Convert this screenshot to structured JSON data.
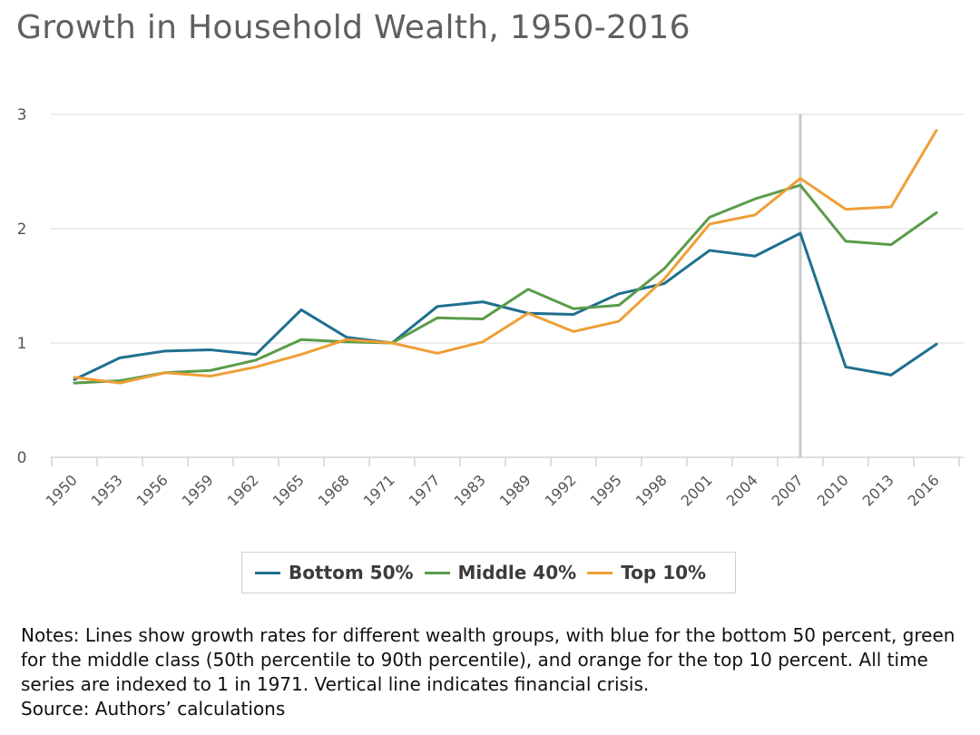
{
  "colors": {
    "bottom": "#1f6f8f",
    "middle": "#5a9c49",
    "top": "#ee9f37",
    "grid": "#d9d9d9",
    "crisis": "#c8c8c8"
  },
  "chart_data": {
    "type": "line",
    "title": "Growth in Household Wealth, 1950-2016",
    "xlabel": "",
    "ylabel": "",
    "ylim": [
      0,
      3
    ],
    "yticks": [
      "0",
      "1",
      "2",
      "3"
    ],
    "categories": [
      "1950",
      "1953",
      "1956",
      "1959",
      "1962",
      "1965",
      "1968",
      "1971",
      "1977",
      "1983",
      "1989",
      "1992",
      "1995",
      "1998",
      "2001",
      "2004",
      "2007",
      "2010",
      "2013",
      "2016"
    ],
    "series": [
      {
        "name": "Bottom 50%",
        "color_key": "bottom",
        "values": [
          0.68,
          0.87,
          0.93,
          0.94,
          0.9,
          1.29,
          1.05,
          1.0,
          1.32,
          1.36,
          1.26,
          1.25,
          1.43,
          1.52,
          1.81,
          1.76,
          1.96,
          0.79,
          0.72,
          0.99
        ]
      },
      {
        "name": "Middle 40%",
        "color_key": "middle",
        "values": [
          0.65,
          0.67,
          0.74,
          0.76,
          0.85,
          1.03,
          1.01,
          1.0,
          1.22,
          1.21,
          1.47,
          1.3,
          1.33,
          1.65,
          2.1,
          2.26,
          2.38,
          1.89,
          1.86,
          2.14
        ]
      },
      {
        "name": "Top 10%",
        "color_key": "top",
        "values": [
          0.7,
          0.65,
          0.74,
          0.71,
          0.79,
          0.9,
          1.03,
          1.0,
          0.91,
          1.01,
          1.26,
          1.1,
          1.19,
          1.56,
          2.04,
          2.12,
          2.44,
          2.17,
          2.19,
          2.86
        ]
      }
    ],
    "crisis_line": {
      "category": "2007",
      "label": "financial crisis"
    },
    "legend_position": "bottom-center"
  },
  "notes": {
    "lines": [
      "Notes: Lines show growth rates for different wealth groups, with blue for the bottom 50 percent, green",
      "for the middle class (50th percentile to 90th percentile), and orange for the top 10 percent. All time",
      "series are indexed to 1 in 1971. Vertical line indicates financial crisis."
    ],
    "source": "Source: Authors’ calculations"
  }
}
